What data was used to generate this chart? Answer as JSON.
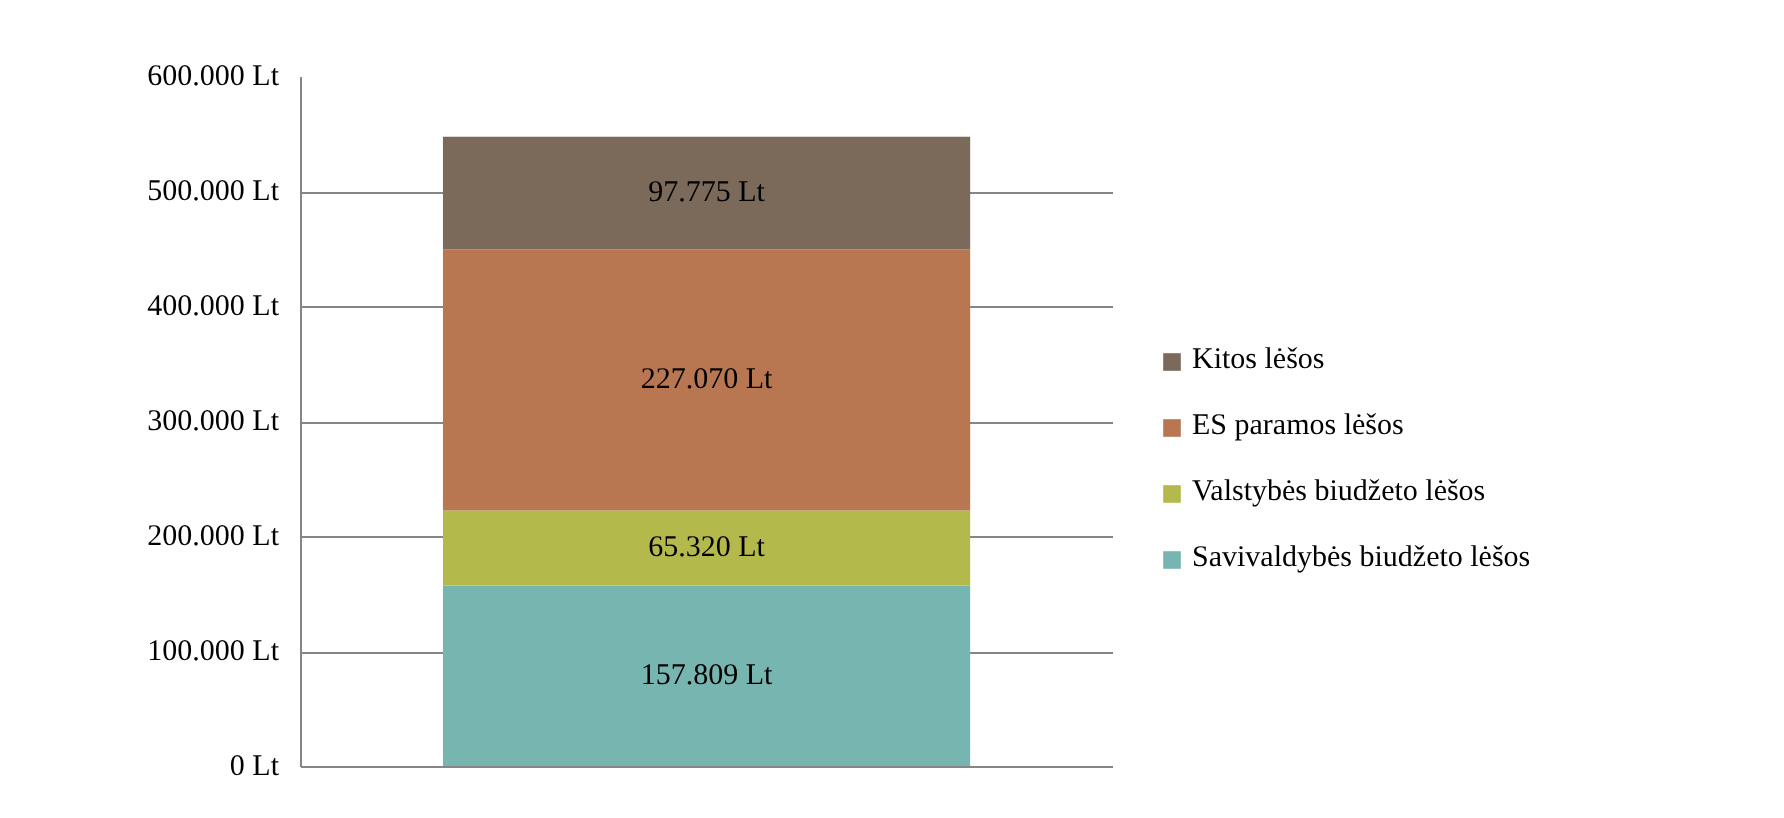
{
  "chart_data": {
    "type": "bar",
    "stacked": true,
    "categories": [
      null
    ],
    "series": [
      {
        "name": "Savivaldybės biudžeto lėšos",
        "color": "#77b5b0",
        "values": [
          157809
        ],
        "value_labels": [
          "157.809 Lt"
        ]
      },
      {
        "name": "Valstybės biudžeto lėšos",
        "color": "#b4b94b",
        "values": [
          65320
        ],
        "value_labels": [
          "65.320 Lt"
        ]
      },
      {
        "name": "ES paramos lėšos",
        "color": "#b87751",
        "values": [
          227070
        ],
        "value_labels": [
          "227.070 Lt"
        ]
      },
      {
        "name": "Kitos lėšos",
        "color": "#7b6a59",
        "values": [
          97775
        ],
        "value_labels": [
          "97.775 Lt"
        ]
      }
    ],
    "ylim": [
      0,
      600000
    ],
    "yticks": [
      {
        "value": 0,
        "label": "0 Lt"
      },
      {
        "value": 100000,
        "label": "100.000 Lt"
      },
      {
        "value": 200000,
        "label": "200.000 Lt"
      },
      {
        "value": 300000,
        "label": "300.000 Lt"
      },
      {
        "value": 400000,
        "label": "400.000 Lt"
      },
      {
        "value": 500000,
        "label": "500.000 Lt"
      },
      {
        "value": 600000,
        "label": "600.000 Lt"
      }
    ],
    "grid": "y",
    "legend": "right"
  }
}
